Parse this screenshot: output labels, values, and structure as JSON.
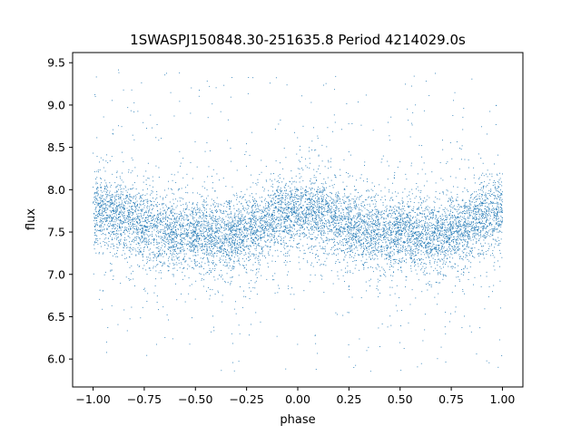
{
  "chart_data": {
    "type": "scatter",
    "title": "1SWASPJ150848.30-251635.8 Period 4214029.0s",
    "xlabel": "phase",
    "ylabel": "flux",
    "xlim": [
      -1.1,
      1.1
    ],
    "ylim": [
      5.67,
      9.62
    ],
    "x_ticks": [
      -1.0,
      -0.75,
      -0.5,
      -0.25,
      0.0,
      0.25,
      0.5,
      0.75,
      1.0
    ],
    "x_tick_labels": [
      "−1.00",
      "−0.75",
      "−0.50",
      "−0.25",
      "0.00",
      "0.25",
      "0.50",
      "0.75",
      "1.00"
    ],
    "y_ticks": [
      6.0,
      6.5,
      7.0,
      7.5,
      8.0,
      8.5,
      9.0,
      9.5
    ],
    "y_tick_labels": [
      "6.0",
      "6.5",
      "7.0",
      "7.5",
      "8.0",
      "8.5",
      "9.0",
      "9.5"
    ],
    "grid": false,
    "marker_color": "#1f77b4",
    "series": [
      {
        "x_range": [
          -1.0,
          1.0
        ],
        "profile_phase": [
          0.0,
          0.1,
          0.2,
          0.3,
          0.4,
          0.5,
          0.6,
          0.7,
          0.8,
          0.9,
          1.0
        ],
        "profile_flux": [
          7.75,
          7.72,
          7.62,
          7.55,
          7.48,
          7.5,
          7.45,
          7.45,
          7.55,
          7.68,
          7.75
        ],
        "scatter_sd": 0.2,
        "outlier_range": [
          5.85,
          9.45
        ],
        "n_points": 9000
      }
    ]
  }
}
